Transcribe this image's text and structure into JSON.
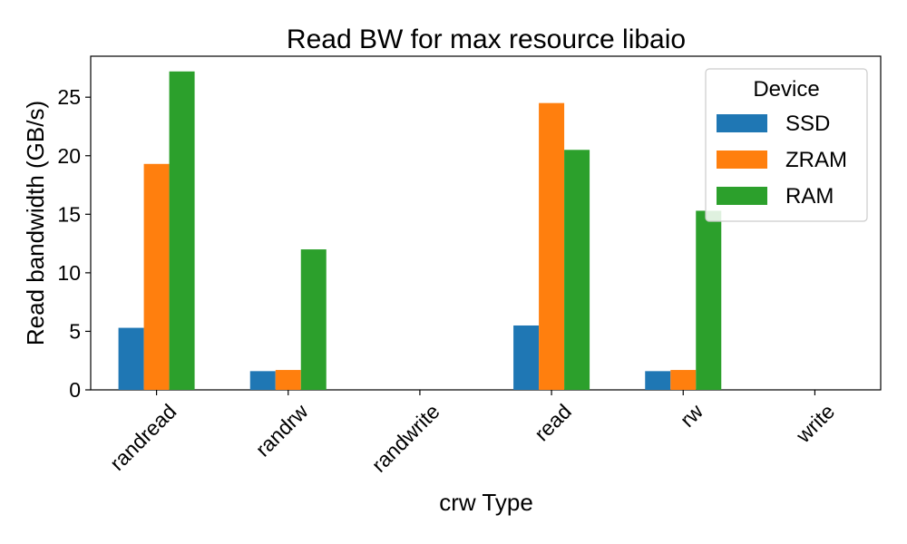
{
  "chart_data": {
    "type": "bar",
    "title": "Read BW for max resource libaio",
    "xlabel": "crw Type",
    "ylabel": "Read bandwidth (GB/s)",
    "categories": [
      "randread",
      "randrw",
      "randwrite",
      "read",
      "rw",
      "write"
    ],
    "series": [
      {
        "name": "SSD",
        "color": "#1f77b4",
        "values": [
          5.3,
          1.6,
          0,
          5.5,
          1.6,
          0
        ]
      },
      {
        "name": "ZRAM",
        "color": "#ff7f0e",
        "values": [
          19.3,
          1.7,
          0,
          24.5,
          1.7,
          0
        ]
      },
      {
        "name": "RAM",
        "color": "#2ca02c",
        "values": [
          27.2,
          12.0,
          0,
          20.5,
          15.3,
          0
        ]
      }
    ],
    "ylim": [
      0,
      28.5
    ],
    "yticks": [
      0,
      5,
      10,
      15,
      20,
      25
    ],
    "legend": {
      "title": "Device",
      "placement": "top-right"
    },
    "grid": false
  }
}
